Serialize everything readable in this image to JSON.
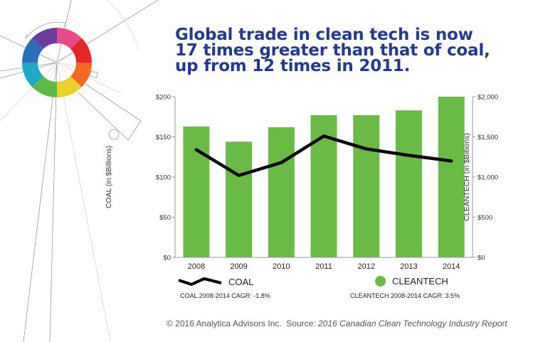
{
  "headline": {
    "lines": [
      "Global trade in clean tech is now",
      "17 times greater than that of coal,",
      "up from 12 times in 2011."
    ],
    "color": "#233a8f"
  },
  "colors": {
    "bar": "#6abb46",
    "line": "#000000",
    "axis": "#999999",
    "text": "#333333"
  },
  "legend": {
    "coal_label": "COAL",
    "cleantech_label": "CLEANTECH",
    "coal_cagr": "COAL 2008-2014 CAGR: -1.8%",
    "cleantech_cagr": "CLEANTECH 2008-2014 CAGR: 3.5%"
  },
  "footer": {
    "copyright": "© 2016 Analytica Advisors Inc.",
    "source_label": "Source:",
    "source_title": "2016 Canadian Clean Technology Industry Report"
  },
  "chart_data": {
    "type": "bar",
    "title": "Global trade in clean tech is now 17 times greater than that of coal, up from 12 times in 2011.",
    "categories": [
      "2008",
      "2009",
      "2010",
      "2011",
      "2012",
      "2013",
      "2014"
    ],
    "series": [
      {
        "name": "CLEANTECH",
        "type": "bar",
        "axis": "right",
        "values": [
          1630,
          1440,
          1620,
          1770,
          1770,
          1830,
          2000
        ]
      },
      {
        "name": "COAL",
        "type": "line",
        "axis": "left",
        "values": [
          134,
          102,
          118,
          151,
          135,
          127,
          120
        ]
      }
    ],
    "y_left": {
      "label": "COAL (in $Billions)",
      "range": [
        0,
        200
      ],
      "ticks": [
        "$0",
        "$50",
        "$100",
        "$150",
        "$200"
      ],
      "tick_values": [
        0,
        50,
        100,
        150,
        200
      ]
    },
    "y_right": {
      "label": "CLEANTECH (in $Billions)",
      "range": [
        0,
        2000
      ],
      "ticks": [
        "$0",
        "$500",
        "$1,000",
        "$1,500",
        "$2,000"
      ],
      "tick_values": [
        0,
        500,
        1000,
        1500,
        2000
      ]
    },
    "xlabel": "",
    "grid": false,
    "legend_position": "bottom"
  }
}
